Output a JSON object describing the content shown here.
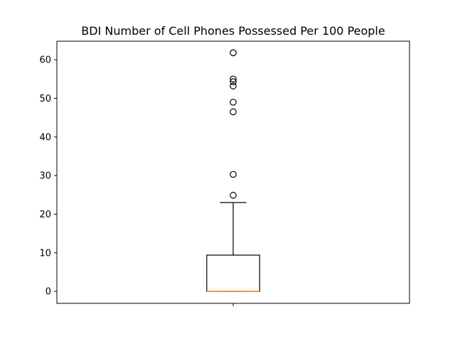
{
  "chart_data": {
    "type": "box",
    "title": "BDI Number of Cell Phones Possessed Per 100 People",
    "xlabel": "",
    "ylabel": "",
    "ylim": [
      -3.1,
      64.8
    ],
    "yticks": [
      0,
      10,
      20,
      30,
      40,
      50,
      60
    ],
    "xticks": [
      1
    ],
    "xticklabels": [
      ""
    ],
    "box": {
      "position": 1,
      "whisker_low": 0,
      "q1": 0,
      "median": 0,
      "q3": 9.4,
      "whisker_high": 23
    },
    "outliers": [
      24.9,
      30.3,
      46.5,
      49.0,
      53.2,
      54.3,
      55.0,
      61.8
    ],
    "grid": false,
    "colors": {
      "box": "#000000",
      "median": "#ff7f0e",
      "outlier": "#000000"
    }
  }
}
